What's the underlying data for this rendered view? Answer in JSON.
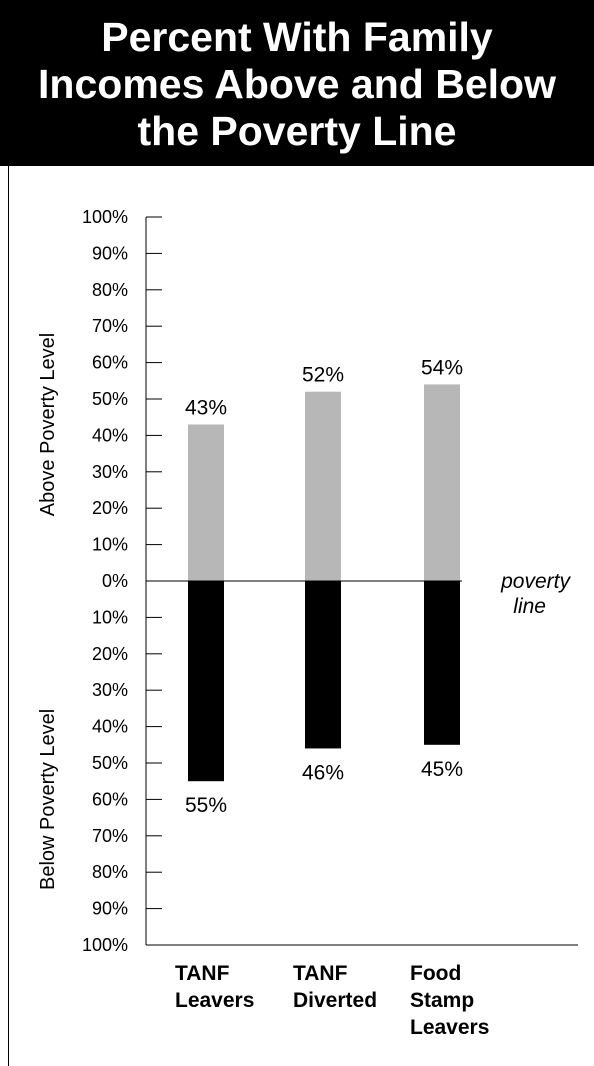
{
  "chart_data": {
    "type": "bar",
    "title": "Percent With Family Incomes Above and Below the Poverty Line",
    "title_lines": [
      "Percent With Family",
      "Incomes Above and Below",
      "the Poverty Line"
    ],
    "categories": [
      [
        "TANF",
        "Leavers"
      ],
      [
        "TANF",
        "Diverted"
      ],
      [
        "Food",
        "Stamp",
        "Leavers"
      ]
    ],
    "series": [
      {
        "name": "Above Poverty Level",
        "values": [
          43,
          52,
          54
        ],
        "labels": [
          "43%",
          "52%",
          "54%"
        ],
        "color": "#b7b7b7"
      },
      {
        "name": "Below Poverty Level",
        "values": [
          55,
          46,
          45
        ],
        "labels": [
          "55%",
          "46%",
          "45%"
        ],
        "color": "#000000"
      }
    ],
    "ylabel_above": "Above Poverty Level",
    "ylabel_below": "Below Poverty Level",
    "ylim": [
      -100,
      100
    ],
    "above_ticks": [
      "0%",
      "10%",
      "20%",
      "30%",
      "40%",
      "50%",
      "60%",
      "70%",
      "80%",
      "90%",
      "100%"
    ],
    "below_ticks": [
      "10%",
      "20%",
      "30%",
      "40%",
      "50%",
      "60%",
      "70%",
      "80%",
      "90%",
      "100%"
    ],
    "reference_line": {
      "value": 0,
      "label_lines": [
        "poverty",
        "line"
      ]
    },
    "grid": false,
    "legend": "none"
  }
}
